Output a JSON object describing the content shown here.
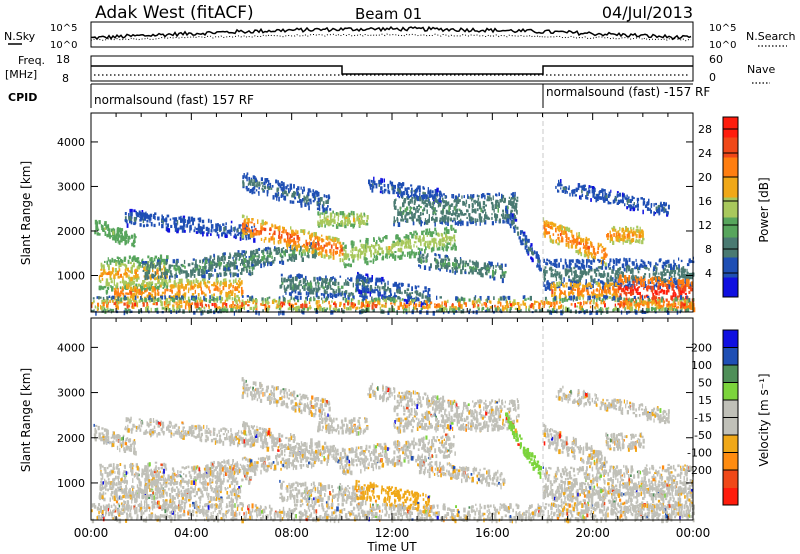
{
  "header": {
    "station": "Adak West (fitACF)",
    "beam": "Beam 01",
    "date": "04/Jul/2013"
  },
  "status_panels": {
    "nsky_label": "N.Sky",
    "nsky_ticks": [
      "10^5",
      "10^0"
    ],
    "nsearch_label": "N.Search",
    "nsearch_ticks": [
      "10^5",
      "10^0"
    ],
    "freq_label_1": "Freq.",
    "freq_label_2": "[MHz]",
    "freq_ticks": [
      "18",
      "8"
    ],
    "nave_label": "Nave",
    "nave_ticks": [
      "60",
      "0"
    ],
    "cpid_label": "CPID",
    "cpid_segments": [
      "normalsound (fast) 157 RF",
      "normalsound (fast) -157 RF"
    ]
  },
  "colors": {
    "power_scale": [
      "#1010e0",
      "#1f4fb4",
      "#4a7a72",
      "#57a55c",
      "#a8c85c",
      "#f0a818",
      "#ff7e10",
      "#f04818",
      "#ff1c0c"
    ],
    "velocity_scale": [
      "#ff1c0c",
      "#f04818",
      "#ff8c10",
      "#f0a818",
      "#c0c0b8",
      "#c0c0b8",
      "#7cd43c",
      "#4f8f58",
      "#1f4fb4",
      "#1010e0"
    ]
  },
  "chart_data": [
    {
      "type": "heatmap",
      "title": "Power",
      "xlabel": "",
      "ylabel": "Slant Range [km]",
      "x_ticks": [
        "00:00",
        "04:00",
        "08:00",
        "12:00",
        "16:00",
        "20:00",
        "00:00"
      ],
      "y_ticks": [
        "1000",
        "2000",
        "3000",
        "4000"
      ],
      "ylim": [
        180,
        4650
      ],
      "colorbar_label": "Power [dB]",
      "colorbar_ticks": [
        "4",
        "8",
        "12",
        "16",
        "20",
        "24",
        "28"
      ],
      "zlim": [
        0,
        30
      ],
      "grid": false
    },
    {
      "type": "heatmap",
      "title": "Velocity",
      "xlabel": "Time UT",
      "ylabel": "Slant Range [km]",
      "x_ticks": [
        "00:00",
        "04:00",
        "08:00",
        "12:00",
        "16:00",
        "20:00",
        "00:00"
      ],
      "y_ticks": [
        "1000",
        "2000",
        "3000",
        "4000"
      ],
      "ylim": [
        180,
        4650
      ],
      "colorbar_label": "Velocity [m s⁻¹]",
      "colorbar_ticks": [
        "200",
        "100",
        "50",
        "15",
        "-15",
        "-50",
        "-100",
        "-200"
      ],
      "grid": false
    }
  ]
}
